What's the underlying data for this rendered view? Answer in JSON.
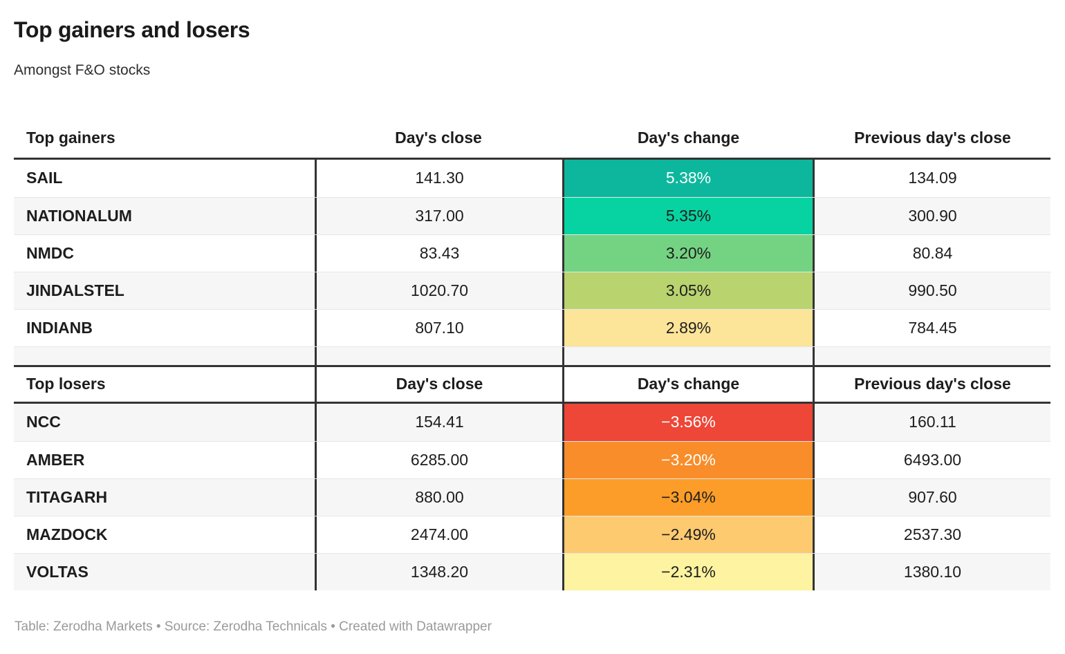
{
  "chart_data": {
    "type": "table",
    "title": "Top gainers and losers",
    "subtitle": "Amongst F&O stocks",
    "gainers": {
      "headers": {
        "label": "Top gainers",
        "close": "Day's close",
        "change": "Day's change",
        "prev": "Previous day's close"
      },
      "rows": [
        {
          "name": "SAIL",
          "close": "141.30",
          "change": "5.38%",
          "prev": "134.09",
          "change_bg": "#0db79d",
          "change_fg": "#ffffff"
        },
        {
          "name": "NATIONALUM",
          "close": "317.00",
          "change": "5.35%",
          "prev": "300.90",
          "change_bg": "#07d3a2",
          "change_fg": "#1d1d1d"
        },
        {
          "name": "NMDC",
          "close": "83.43",
          "change": "3.20%",
          "prev": "80.84",
          "change_bg": "#74d383",
          "change_fg": "#1d1d1d"
        },
        {
          "name": "JINDALSTEL",
          "close": "1020.70",
          "change": "3.05%",
          "prev": "990.50",
          "change_bg": "#b9d36e",
          "change_fg": "#1d1d1d"
        },
        {
          "name": "INDIANB",
          "close": "807.10",
          "change": "2.89%",
          "prev": "784.45",
          "change_bg": "#fce499",
          "change_fg": "#1d1d1d"
        }
      ]
    },
    "losers": {
      "headers": {
        "label": "Top losers",
        "close": "Day's close",
        "change": "Day's change",
        "prev": "Previous day's close"
      },
      "rows": [
        {
          "name": "NCC",
          "close": "154.41",
          "change": "−3.56%",
          "prev": "160.11",
          "change_bg": "#ee4637",
          "change_fg": "#ffffff"
        },
        {
          "name": "AMBER",
          "close": "6285.00",
          "change": "−3.20%",
          "prev": "6493.00",
          "change_bg": "#f88d2a",
          "change_fg": "#ffffff"
        },
        {
          "name": "TITAGARH",
          "close": "880.00",
          "change": "−3.04%",
          "prev": "907.60",
          "change_bg": "#fb9d28",
          "change_fg": "#1d1d1d"
        },
        {
          "name": "MAZDOCK",
          "close": "2474.00",
          "change": "−2.49%",
          "prev": "2537.30",
          "change_bg": "#fdca70",
          "change_fg": "#1d1d1d"
        },
        {
          "name": "VOLTAS",
          "close": "1348.20",
          "change": "−2.31%",
          "prev": "1380.10",
          "change_bg": "#fdf3a0",
          "change_fg": "#1d1d1d"
        }
      ]
    },
    "footer": "Table: Zerodha Markets • Source: Zerodha Technicals • Created with Datawrapper",
    "palette": {
      "thick_border": "#333333",
      "row_line": "#e6e6e6",
      "alt_row_bg": "#f6f6f6",
      "text": "#1d1d1d",
      "footer_text": "#9a9a9a"
    }
  }
}
